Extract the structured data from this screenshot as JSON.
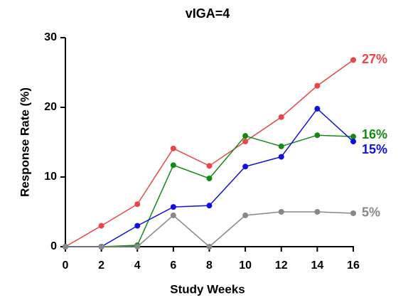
{
  "chart_data": {
    "type": "line",
    "title": "vIGA=4",
    "xlabel": "Study Weeks",
    "ylabel": "Response Rate (%)",
    "x": [
      0,
      2,
      4,
      6,
      8,
      10,
      12,
      14,
      16
    ],
    "xlim": [
      0,
      16
    ],
    "xticks": [
      0,
      2,
      4,
      6,
      8,
      10,
      12,
      14,
      16
    ],
    "ylim": [
      0,
      30
    ],
    "yticks": [
      0,
      10,
      20,
      30
    ],
    "series": [
      {
        "name": "27%",
        "color": "#e8474a",
        "values": [
          0,
          3.0,
          6.1,
          14.1,
          11.6,
          15.1,
          18.6,
          23.1,
          26.8
        ]
      },
      {
        "name": "16%",
        "color": "#138a13",
        "values": [
          0,
          0,
          0.2,
          11.7,
          9.8,
          15.9,
          14.4,
          16.0,
          15.8
        ]
      },
      {
        "name": "15%",
        "color": "#1010e0",
        "values": [
          0,
          0,
          3.0,
          5.7,
          5.9,
          11.5,
          12.9,
          19.8,
          15.1
        ]
      },
      {
        "name": "5%",
        "color": "#888888",
        "values": [
          0,
          0,
          0,
          4.5,
          0,
          4.5,
          5.0,
          5.0,
          4.8
        ]
      }
    ]
  }
}
